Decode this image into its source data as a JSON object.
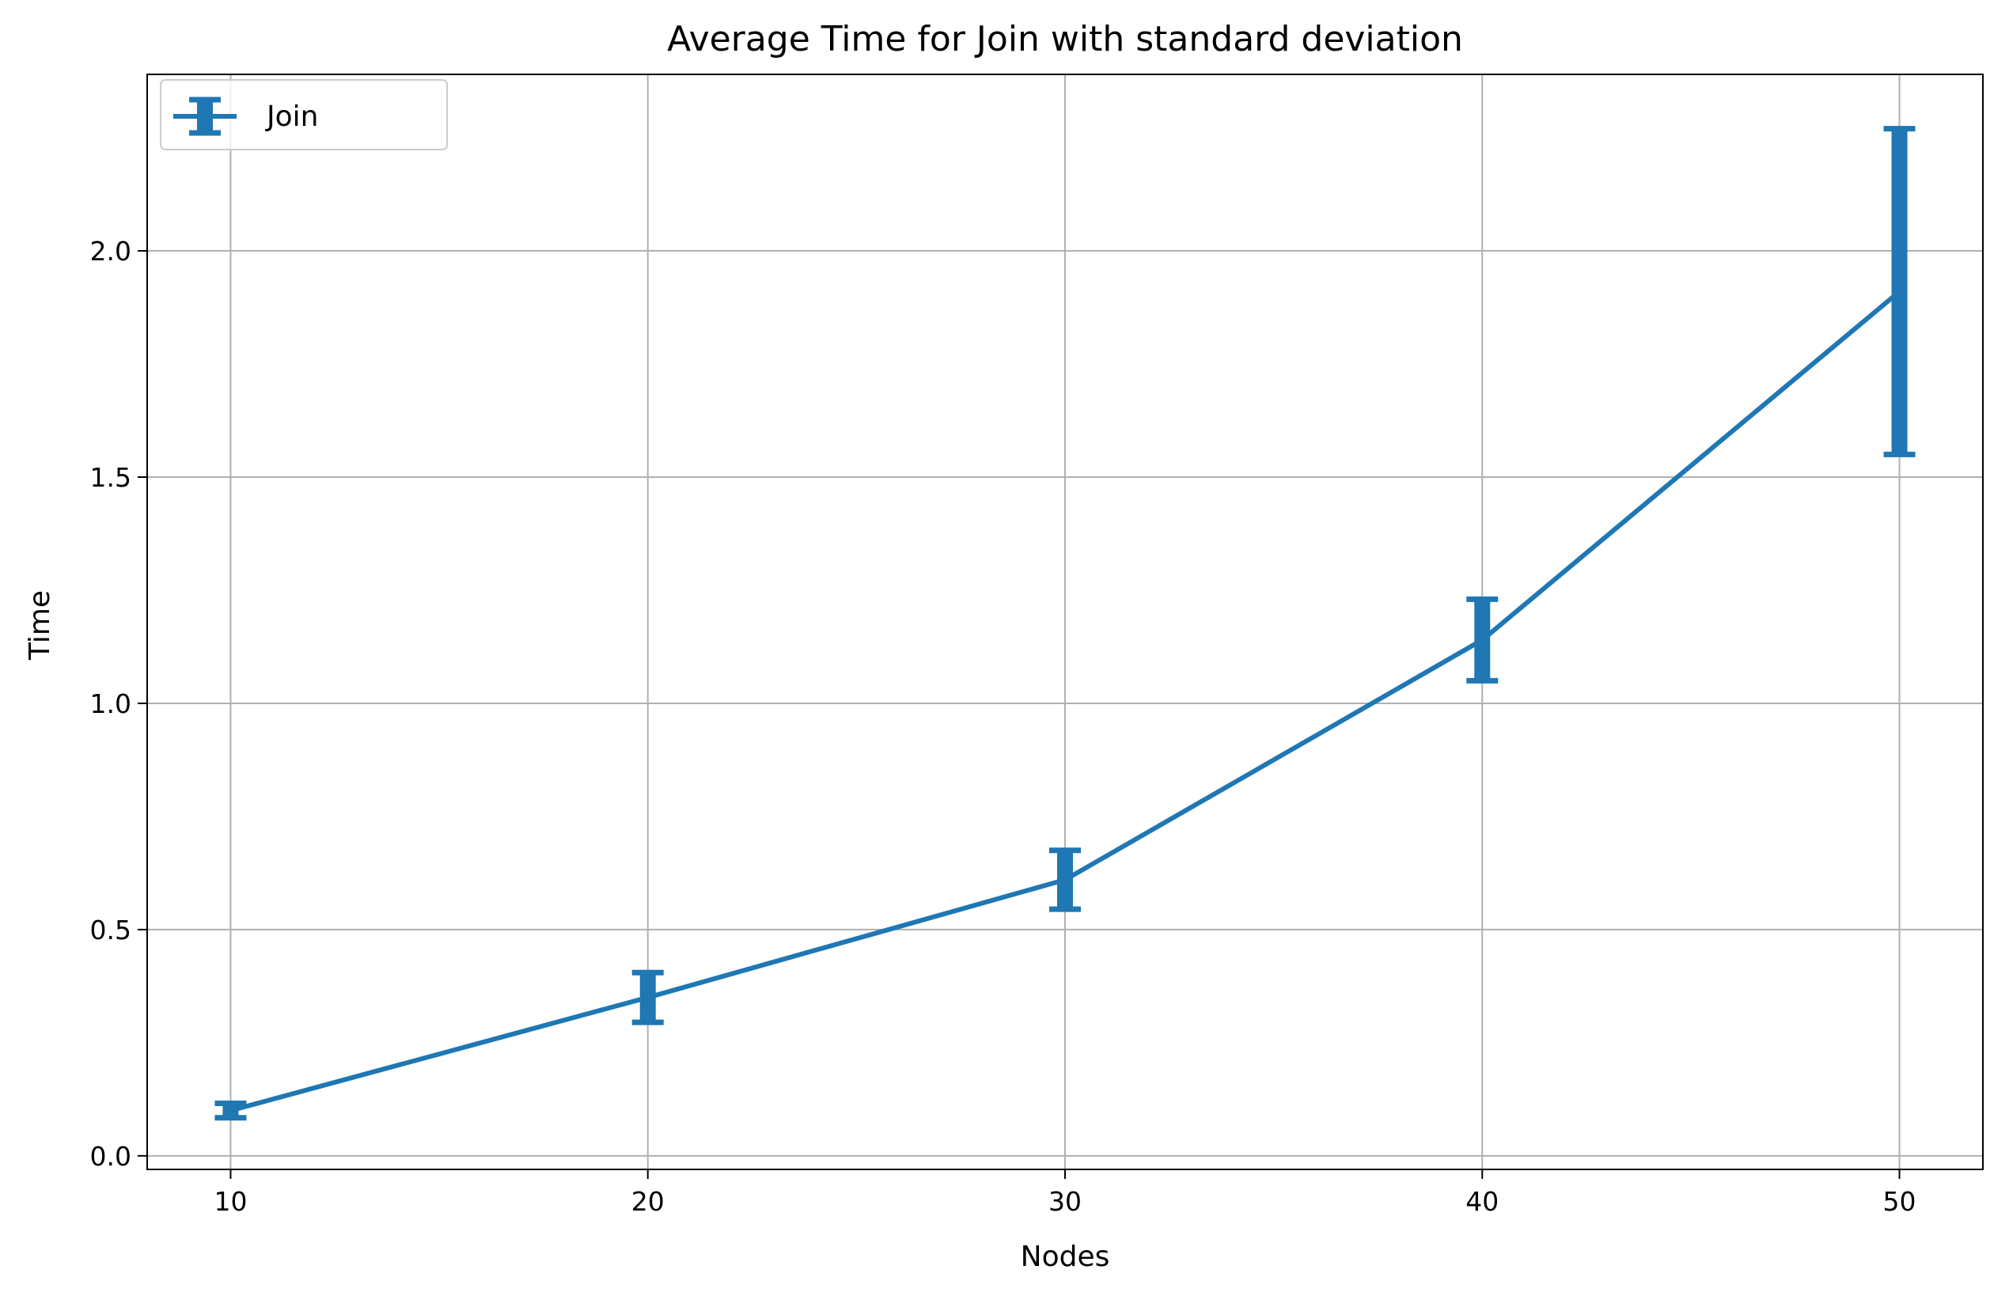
{
  "chart_data": {
    "type": "line",
    "title": "Average Time for Join with standard deviation",
    "xlabel": "Nodes",
    "ylabel": "Time",
    "xlim": [
      8,
      52
    ],
    "ylim": [
      -0.03,
      2.39
    ],
    "xticks": [
      10,
      20,
      30,
      40,
      50
    ],
    "yticks": [
      0.0,
      0.5,
      1.0,
      1.5,
      2.0
    ],
    "xtick_labels": [
      "10",
      "20",
      "30",
      "40",
      "50"
    ],
    "ytick_labels": [
      "0.0",
      "0.5",
      "1.0",
      "1.5",
      "2.0"
    ],
    "grid": true,
    "legend_position": "top-left",
    "series": [
      {
        "name": "Join",
        "color": "#1f77b4",
        "x": [
          10,
          20,
          30,
          40,
          50
        ],
        "y": [
          0.1,
          0.35,
          0.61,
          1.14,
          1.91
        ],
        "error": [
          0.016,
          0.055,
          0.065,
          0.09,
          0.36
        ]
      }
    ]
  }
}
